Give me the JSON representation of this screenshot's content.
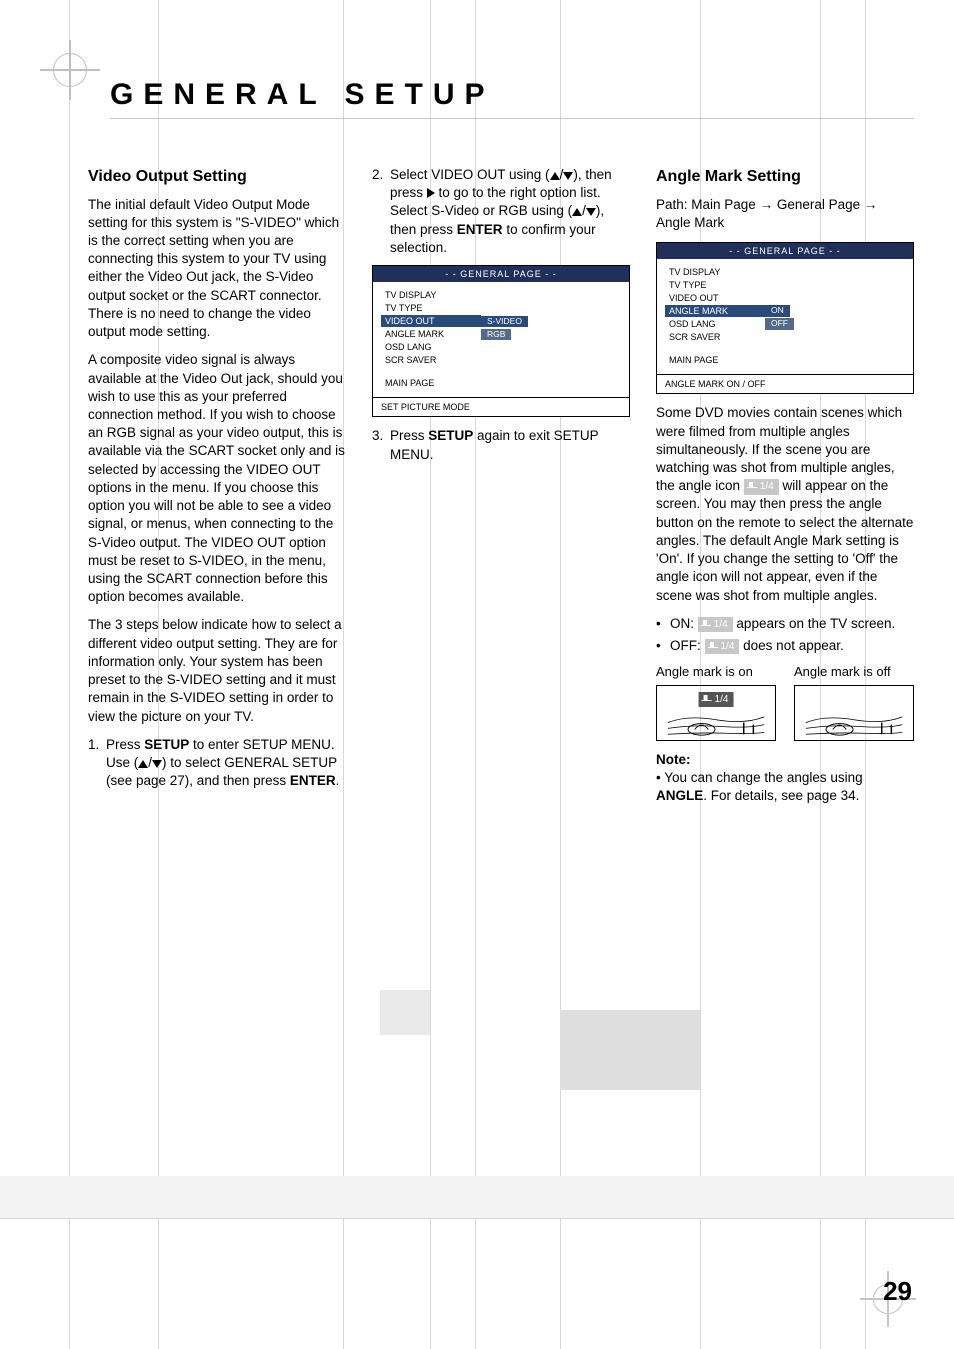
{
  "page": {
    "title": "GENERAL SETUP",
    "number": "29",
    "colors": {
      "background": "#ffffff",
      "text": "#000000",
      "rule": "#c7c7c7",
      "osd_header_bg": "#20305a",
      "osd_sel_bg": "#2a4a7a",
      "angle_tag_bg": "#c7c7c7",
      "angle_tag_dark_bg": "#555555",
      "grid_gray_light": "#f3f3f3",
      "grid_gray_med": "#e9e9e9",
      "grid_gray_dark": "#dedede"
    }
  },
  "col1": {
    "heading": "Video Output Setting",
    "p1": "The initial default Video Output Mode setting for this system is \"S-VIDEO\" which is the correct setting when you are connecting this system to your TV using either the Video Out jack, the S-Video output socket or the SCART connector. There is no need to change the video output mode setting.",
    "p2": "A composite video signal is always available at the Video Out jack, should you wish to use this as your preferred connection method. If you wish to choose an RGB signal as your video output, this is available via the SCART socket only and is selected by accessing the VIDEO OUT options in the menu. If you choose this option you will not be able to see a video signal, or menus, when connecting to the S-Video output. The VIDEO OUT option must be reset to S-VIDEO, in the menu, using the SCART connection before this option becomes available.",
    "p3": "The 3 steps below indicate how to select a different video output setting. They are for information only. Your system has been preset to the S-VIDEO setting and it must remain in the S-VIDEO setting in order to view the picture on your TV.",
    "step1_a": "Press ",
    "step1_b": "SETUP",
    "step1_c": " to enter SETUP MENU. Use (",
    "step1_d": ") to select GENERAL SETUP (see page 27), and then press ",
    "step1_e": "ENTER",
    "step1_f": "."
  },
  "col2": {
    "step2_a": "Select VIDEO OUT using (",
    "step2_b": "), then press ",
    "step2_c": " to go to the right option list. Select S-Video or RGB using (",
    "step2_d": "), then press ",
    "step2_e": "ENTER",
    "step2_f": " to confirm your selection.",
    "osd": {
      "header": "- - GENERAL PAGE - -",
      "items": [
        {
          "label": "TV DISPLAY",
          "option": ""
        },
        {
          "label": "TV TYPE",
          "option": ""
        },
        {
          "label": "VIDEO OUT",
          "option": "S-VIDEO",
          "selected": true,
          "optSelected": true
        },
        {
          "label": "ANGLE MARK",
          "option": "RGB",
          "optBox": true
        },
        {
          "label": "OSD LANG",
          "option": ""
        },
        {
          "label": "SCR SAVER",
          "option": ""
        }
      ],
      "main": "MAIN PAGE",
      "bottom": "SET PICTURE MODE"
    },
    "step3_a": "Press ",
    "step3_b": "SETUP",
    "step3_c": " again to exit SETUP MENU."
  },
  "col3": {
    "heading": "Angle Mark Setting",
    "path_a": "Path: Main Page ",
    "path_b": " General Page ",
    "path_c": " Angle Mark",
    "osd": {
      "header": "- - GENERAL PAGE - -",
      "items": [
        {
          "label": "TV DISPLAY",
          "option": ""
        },
        {
          "label": "TV TYPE",
          "option": ""
        },
        {
          "label": "VIDEO OUT",
          "option": ""
        },
        {
          "label": "ANGLE MARK",
          "option": "ON",
          "selected": true,
          "optSelected": true
        },
        {
          "label": "OSD LANG",
          "option": "OFF",
          "optBox": true
        },
        {
          "label": "SCR SAVER",
          "option": ""
        }
      ],
      "main": "MAIN PAGE",
      "bottom": "ANGLE MARK ON / OFF"
    },
    "p1a": "Some DVD movies contain scenes which were filmed from multiple angles simultaneously. If the scene you are watching was shot from multiple angles, the angle icon ",
    "p1b": " will appear on the screen. You may then press the angle button on the remote to select the alternate angles. The default Angle Mark setting is 'On'. If you change the setting to 'Off' the angle icon will not appear, even if the scene was shot from multiple angles.",
    "angle_tag": "1/4",
    "on_a": "ON: ",
    "on_b": " appears on the TV screen.",
    "off_a": "OFF: ",
    "off_b": " does not appear.",
    "cap_on": "Angle mark is on",
    "cap_off": "Angle mark is off",
    "note_h": "Note:",
    "note_a": "You can change the angles using ",
    "note_b": "ANGLE",
    "note_c": ". For details, see page 34."
  }
}
